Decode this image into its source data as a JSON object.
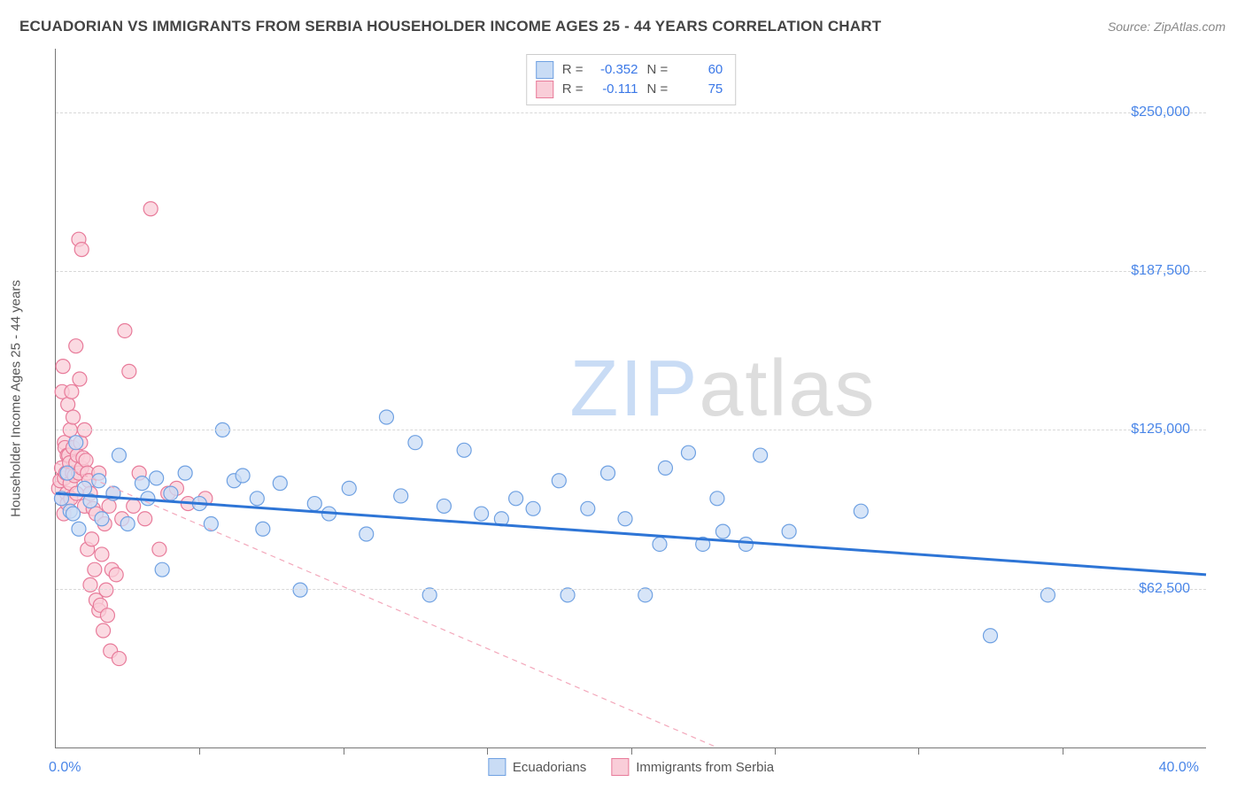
{
  "title": "ECUADORIAN VS IMMIGRANTS FROM SERBIA HOUSEHOLDER INCOME AGES 25 - 44 YEARS CORRELATION CHART",
  "source": "Source: ZipAtlas.com",
  "watermark": {
    "part1": "ZIP",
    "part2": "atlas"
  },
  "chart": {
    "type": "scatter",
    "y_label": "Householder Income Ages 25 - 44 years",
    "xlim": [
      0,
      40
    ],
    "ylim": [
      0,
      275000
    ],
    "x_axis_min_label": "0.0%",
    "x_axis_max_label": "40.0%",
    "x_ticks_at": [
      5,
      10,
      15,
      20,
      25,
      30,
      35
    ],
    "y_gridlines": [
      {
        "value": 62500,
        "label": "$62,500"
      },
      {
        "value": 125000,
        "label": "$125,000"
      },
      {
        "value": 187500,
        "label": "$187,500"
      },
      {
        "value": 250000,
        "label": "$250,000"
      }
    ],
    "background_color": "#ffffff",
    "grid_color": "#d8d8d8",
    "axis_color": "#777777",
    "label_color_axis": "#4a86e8",
    "marker_radius": 8,
    "marker_stroke_width": 1.2,
    "series": {
      "ecuadorians": {
        "label": "Ecuadorians",
        "fill": "#c9dcf5",
        "stroke": "#6fa1e2",
        "trend_color": "#2e75d6",
        "trend_width": 3,
        "trend_dash": "none",
        "stats": {
          "R": "-0.352",
          "N": "60"
        },
        "trend": {
          "x1": 0,
          "y1": 100000,
          "x2": 40,
          "y2": 68000
        },
        "points": [
          [
            0.2,
            98000
          ],
          [
            0.4,
            108000
          ],
          [
            0.5,
            93000
          ],
          [
            0.6,
            92000
          ],
          [
            0.7,
            120000
          ],
          [
            0.8,
            86000
          ],
          [
            1.0,
            102000
          ],
          [
            1.2,
            97000
          ],
          [
            1.5,
            105000
          ],
          [
            1.6,
            90000
          ],
          [
            2.0,
            100000
          ],
          [
            2.2,
            115000
          ],
          [
            2.5,
            88000
          ],
          [
            3.0,
            104000
          ],
          [
            3.2,
            98000
          ],
          [
            3.5,
            106000
          ],
          [
            3.7,
            70000
          ],
          [
            4.0,
            100000
          ],
          [
            4.5,
            108000
          ],
          [
            5.0,
            96000
          ],
          [
            5.4,
            88000
          ],
          [
            5.8,
            125000
          ],
          [
            6.2,
            105000
          ],
          [
            6.5,
            107000
          ],
          [
            7.0,
            98000
          ],
          [
            7.2,
            86000
          ],
          [
            7.8,
            104000
          ],
          [
            8.5,
            62000
          ],
          [
            9.0,
            96000
          ],
          [
            9.5,
            92000
          ],
          [
            10.2,
            102000
          ],
          [
            10.8,
            84000
          ],
          [
            11.5,
            130000
          ],
          [
            12.0,
            99000
          ],
          [
            12.5,
            120000
          ],
          [
            13.0,
            60000
          ],
          [
            13.5,
            95000
          ],
          [
            14.2,
            117000
          ],
          [
            14.8,
            92000
          ],
          [
            15.5,
            90000
          ],
          [
            16.0,
            98000
          ],
          [
            16.6,
            94000
          ],
          [
            17.5,
            105000
          ],
          [
            17.8,
            60000
          ],
          [
            18.5,
            94000
          ],
          [
            19.2,
            108000
          ],
          [
            19.8,
            90000
          ],
          [
            20.5,
            60000
          ],
          [
            21.0,
            80000
          ],
          [
            21.2,
            110000
          ],
          [
            22.0,
            116000
          ],
          [
            22.5,
            80000
          ],
          [
            23.0,
            98000
          ],
          [
            23.2,
            85000
          ],
          [
            24.0,
            80000
          ],
          [
            24.5,
            115000
          ],
          [
            25.5,
            85000
          ],
          [
            28.0,
            93000
          ],
          [
            32.5,
            44000
          ],
          [
            34.5,
            60000
          ]
        ]
      },
      "serbia": {
        "label": "Immigrants from Serbia",
        "fill": "#f9cdd8",
        "stroke": "#e87b9a",
        "trend_color": "#f3a8bb",
        "trend_width": 1.2,
        "trend_dash": "6,5",
        "stats": {
          "R": "-0.111",
          "N": "75"
        },
        "trend": {
          "x1": 0,
          "y1": 112000,
          "x2": 23,
          "y2": 0
        },
        "points": [
          [
            0.1,
            102000
          ],
          [
            0.15,
            105000
          ],
          [
            0.2,
            110000
          ],
          [
            0.2,
            98000
          ],
          [
            0.22,
            140000
          ],
          [
            0.25,
            150000
          ],
          [
            0.28,
            92000
          ],
          [
            0.3,
            106000
          ],
          [
            0.3,
            120000
          ],
          [
            0.32,
            118000
          ],
          [
            0.35,
            108000
          ],
          [
            0.38,
            100000
          ],
          [
            0.4,
            96000
          ],
          [
            0.4,
            115000
          ],
          [
            0.42,
            135000
          ],
          [
            0.45,
            115000
          ],
          [
            0.48,
            112000
          ],
          [
            0.5,
            125000
          ],
          [
            0.5,
            104000
          ],
          [
            0.52,
            98000
          ],
          [
            0.55,
            140000
          ],
          [
            0.58,
            108000
          ],
          [
            0.6,
            118000
          ],
          [
            0.6,
            130000
          ],
          [
            0.65,
            107000
          ],
          [
            0.7,
            112000
          ],
          [
            0.7,
            158000
          ],
          [
            0.72,
            100000
          ],
          [
            0.75,
            115000
          ],
          [
            0.8,
            200000
          ],
          [
            0.8,
            108000
          ],
          [
            0.83,
            145000
          ],
          [
            0.86,
            120000
          ],
          [
            0.9,
            196000
          ],
          [
            0.9,
            110000
          ],
          [
            0.95,
            114000
          ],
          [
            1.0,
            95000
          ],
          [
            1.0,
            125000
          ],
          [
            1.05,
            113000
          ],
          [
            1.1,
            108000
          ],
          [
            1.1,
            78000
          ],
          [
            1.15,
            105000
          ],
          [
            1.2,
            64000
          ],
          [
            1.2,
            100000
          ],
          [
            1.25,
            82000
          ],
          [
            1.3,
            94000
          ],
          [
            1.35,
            70000
          ],
          [
            1.4,
            58000
          ],
          [
            1.4,
            92000
          ],
          [
            1.5,
            54000
          ],
          [
            1.5,
            108000
          ],
          [
            1.55,
            56000
          ],
          [
            1.6,
            76000
          ],
          [
            1.65,
            46000
          ],
          [
            1.7,
            88000
          ],
          [
            1.75,
            62000
          ],
          [
            1.8,
            52000
          ],
          [
            1.85,
            95000
          ],
          [
            1.9,
            38000
          ],
          [
            1.95,
            70000
          ],
          [
            2.0,
            100000
          ],
          [
            2.1,
            68000
          ],
          [
            2.2,
            35000
          ],
          [
            2.3,
            90000
          ],
          [
            2.4,
            164000
          ],
          [
            2.55,
            148000
          ],
          [
            2.7,
            95000
          ],
          [
            2.9,
            108000
          ],
          [
            3.1,
            90000
          ],
          [
            3.3,
            212000
          ],
          [
            3.6,
            78000
          ],
          [
            3.9,
            100000
          ],
          [
            4.2,
            102000
          ],
          [
            4.6,
            96000
          ],
          [
            5.2,
            98000
          ]
        ]
      }
    }
  },
  "legend_top": {
    "R_label": "R =",
    "N_label": "N ="
  }
}
